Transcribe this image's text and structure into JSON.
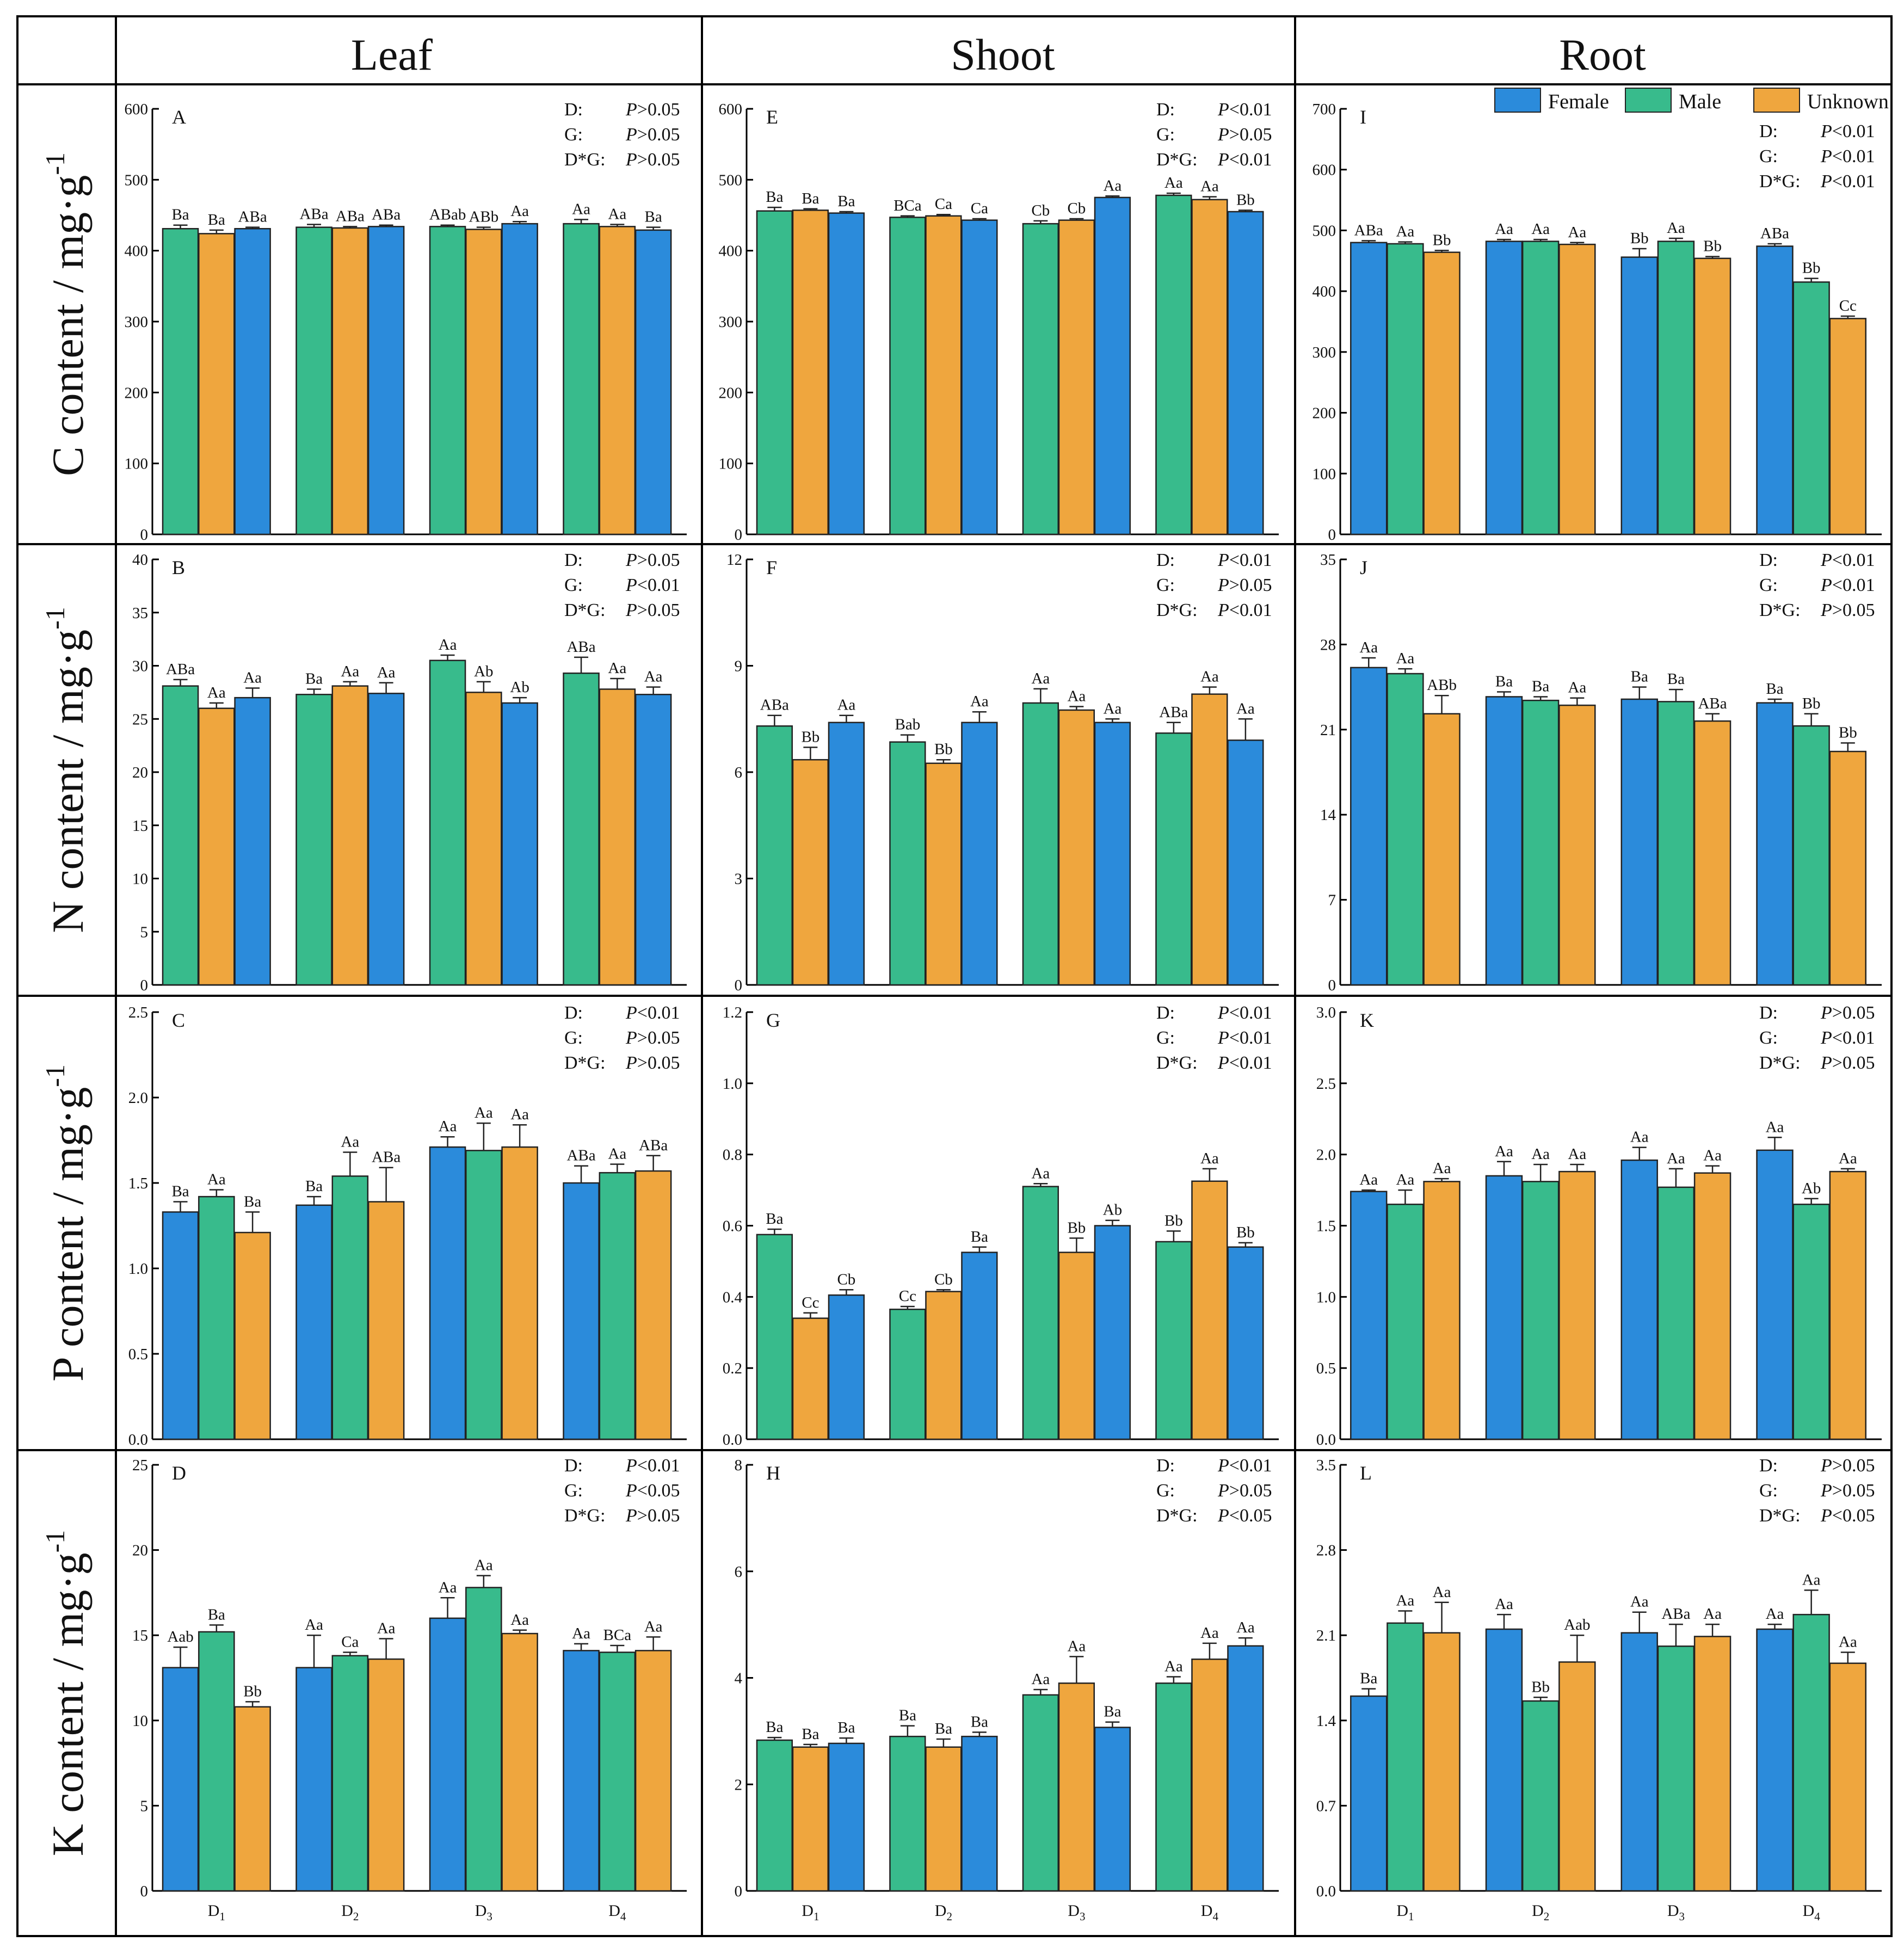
{
  "columns": [
    "Leaf",
    "Shoot",
    "Root"
  ],
  "row_labels": [
    "C content / mg·g",
    "N content / mg·g",
    "P content / mg·g",
    "K content / mg·g"
  ],
  "row_label_superscript": "-1",
  "legend": [
    {
      "name": "Female",
      "color": "#2b8bdb"
    },
    {
      "name": "Male",
      "color": "#38bb8c"
    },
    {
      "name": "Unknown",
      "color": "#efa63e"
    }
  ],
  "categories": [
    "D",
    "D",
    "D",
    "D"
  ],
  "category_subscripts": [
    "1",
    "2",
    "3",
    "4"
  ],
  "chart_data": [
    {
      "id": "A",
      "type": "bar",
      "row": 0,
      "col": 0,
      "ylim": [
        0,
        600
      ],
      "ticks": [
        "0",
        "100",
        "200",
        "300",
        "400",
        "500",
        "600"
      ],
      "series": [
        "Male",
        "Unknown",
        "Female"
      ],
      "values": [
        [
          431,
          424,
          431
        ],
        [
          433,
          432,
          434
        ],
        [
          434,
          430,
          438
        ],
        [
          438,
          434,
          429
        ]
      ],
      "errors": [
        [
          5,
          5,
          2
        ],
        [
          4,
          2,
          2
        ],
        [
          2,
          3,
          3
        ],
        [
          6,
          3,
          4
        ]
      ],
      "labels": [
        [
          "Ba",
          "Ba",
          "ABa"
        ],
        [
          "ABa",
          "ABa",
          "ABa"
        ],
        [
          "ABab",
          "ABb",
          "Aa"
        ],
        [
          "Aa",
          "Aa",
          "Ba"
        ]
      ],
      "stats": [
        [
          "D:",
          "P",
          ">0.05"
        ],
        [
          "G:",
          "P",
          ">0.05"
        ],
        [
          "D*G:",
          "P",
          ">0.05"
        ]
      ]
    },
    {
      "id": "B",
      "type": "bar",
      "row": 1,
      "col": 0,
      "ylim": [
        0,
        40
      ],
      "ticks": [
        "0",
        "5",
        "10",
        "15",
        "20",
        "25",
        "30",
        "35",
        "40"
      ],
      "series": [
        "Male",
        "Unknown",
        "Female"
      ],
      "values": [
        [
          28.1,
          26.0,
          27.0
        ],
        [
          27.3,
          28.1,
          27.4
        ],
        [
          30.5,
          27.5,
          26.5
        ],
        [
          29.3,
          27.8,
          27.3
        ]
      ],
      "errors": [
        [
          0.6,
          0.5,
          0.9
        ],
        [
          0.5,
          0.4,
          1.0
        ],
        [
          0.5,
          1.0,
          0.5
        ],
        [
          1.5,
          1.0,
          0.7
        ]
      ],
      "labels": [
        [
          "ABa",
          "Aa",
          "Aa"
        ],
        [
          "Ba",
          "Aa",
          "Aa"
        ],
        [
          "Aa",
          "Ab",
          "Ab"
        ],
        [
          "ABa",
          "Aa",
          "Aa"
        ]
      ],
      "stats": [
        [
          "D:",
          "P",
          ">0.05"
        ],
        [
          "G:",
          "P",
          "<0.01"
        ],
        [
          "D*G:",
          "P",
          ">0.05"
        ]
      ]
    },
    {
      "id": "C",
      "type": "bar",
      "row": 2,
      "col": 0,
      "ylim": [
        0,
        2.5
      ],
      "ticks": [
        "0.0",
        "0.5",
        "1.0",
        "1.5",
        "2.0",
        "2.5"
      ],
      "series": [
        "Female",
        "Male",
        "Unknown"
      ],
      "values": [
        [
          1.33,
          1.42,
          1.21
        ],
        [
          1.37,
          1.54,
          1.39
        ],
        [
          1.71,
          1.69,
          1.71
        ],
        [
          1.5,
          1.56,
          1.57
        ]
      ],
      "errors": [
        [
          0.06,
          0.04,
          0.12
        ],
        [
          0.05,
          0.14,
          0.2
        ],
        [
          0.06,
          0.16,
          0.13
        ],
        [
          0.1,
          0.05,
          0.09
        ]
      ],
      "labels": [
        [
          "Ba",
          "Aa",
          "Ba"
        ],
        [
          "Ba",
          "Aa",
          "ABa"
        ],
        [
          "Aa",
          "Aa",
          "Aa"
        ],
        [
          "ABa",
          "Aa",
          "ABa"
        ]
      ],
      "stats": [
        [
          "D:",
          "P",
          "<0.01"
        ],
        [
          "G:",
          "P",
          ">0.05"
        ],
        [
          "D*G:",
          "P",
          ">0.05"
        ]
      ]
    },
    {
      "id": "D",
      "type": "bar",
      "row": 3,
      "col": 0,
      "ylim": [
        0,
        25
      ],
      "ticks": [
        "0",
        "5",
        "10",
        "15",
        "20",
        "25"
      ],
      "series": [
        "Female",
        "Male",
        "Unknown"
      ],
      "values": [
        [
          13.1,
          15.2,
          10.8
        ],
        [
          13.1,
          13.8,
          13.6
        ],
        [
          16.0,
          17.8,
          15.1
        ],
        [
          14.1,
          14.0,
          14.1
        ]
      ],
      "errors": [
        [
          1.2,
          0.4,
          0.3
        ],
        [
          1.9,
          0.2,
          1.2
        ],
        [
          1.2,
          0.7,
          0.2
        ],
        [
          0.4,
          0.4,
          0.8
        ]
      ],
      "labels": [
        [
          "Aab",
          "Ba",
          "Bb"
        ],
        [
          "Aa",
          "Ca",
          "Aa"
        ],
        [
          "Aa",
          "Aa",
          "Aa"
        ],
        [
          "Aa",
          "BCa",
          "Aa"
        ]
      ],
      "stats": [
        [
          "D:",
          "P",
          "<0.01"
        ],
        [
          "G:",
          "P",
          "<0.05"
        ],
        [
          "D*G:",
          "P",
          ">0.05"
        ]
      ]
    },
    {
      "id": "E",
      "type": "bar",
      "row": 0,
      "col": 1,
      "ylim": [
        0,
        600
      ],
      "ticks": [
        "0",
        "100",
        "200",
        "300",
        "400",
        "500",
        "600"
      ],
      "series": [
        "Male",
        "Unknown",
        "Female"
      ],
      "values": [
        [
          456,
          457,
          453
        ],
        [
          447,
          449,
          443
        ],
        [
          438,
          443,
          475
        ],
        [
          478,
          472,
          455
        ]
      ],
      "errors": [
        [
          5,
          2,
          2
        ],
        [
          2,
          2,
          2
        ],
        [
          4,
          2,
          2
        ],
        [
          3,
          4,
          2
        ]
      ],
      "labels": [
        [
          "Ba",
          "Ba",
          "Ba"
        ],
        [
          "BCa",
          "Ca",
          "Ca"
        ],
        [
          "Cb",
          "Cb",
          "Aa"
        ],
        [
          "Aa",
          "Aa",
          "Bb"
        ]
      ],
      "stats": [
        [
          "D:",
          "P",
          "<0.01"
        ],
        [
          "G:",
          "P",
          ">0.05"
        ],
        [
          "D*G:",
          "P",
          "<0.01"
        ]
      ]
    },
    {
      "id": "F",
      "type": "bar",
      "row": 1,
      "col": 1,
      "ylim": [
        0,
        12
      ],
      "ticks": [
        "0",
        "3",
        "6",
        "9",
        "12"
      ],
      "series": [
        "Male",
        "Unknown",
        "Female"
      ],
      "values": [
        [
          7.3,
          6.35,
          7.4
        ],
        [
          6.85,
          6.25,
          7.4
        ],
        [
          7.95,
          7.75,
          7.4
        ],
        [
          7.1,
          8.2,
          6.9
        ]
      ],
      "errors": [
        [
          0.3,
          0.35,
          0.2
        ],
        [
          0.2,
          0.1,
          0.3
        ],
        [
          0.4,
          0.1,
          0.1
        ],
        [
          0.3,
          0.2,
          0.6
        ]
      ],
      "labels": [
        [
          "ABa",
          "Bb",
          "Aa"
        ],
        [
          "Bab",
          "Bb",
          "Aa"
        ],
        [
          "Aa",
          "Aa",
          "Aa"
        ],
        [
          "ABa",
          "Aa",
          "Aa"
        ]
      ],
      "stats": [
        [
          "D:",
          "P",
          "<0.01"
        ],
        [
          "G:",
          "P",
          ">0.05"
        ],
        [
          "D*G:",
          "P",
          "<0.01"
        ]
      ]
    },
    {
      "id": "G",
      "type": "bar",
      "row": 2,
      "col": 1,
      "ylim": [
        0,
        1.2
      ],
      "ticks": [
        "0.0",
        "0.2",
        "0.4",
        "0.6",
        "0.8",
        "1.0",
        "1.2"
      ],
      "series": [
        "Male",
        "Unknown",
        "Female"
      ],
      "values": [
        [
          0.575,
          0.34,
          0.405
        ],
        [
          0.365,
          0.415,
          0.525
        ],
        [
          0.71,
          0.525,
          0.6
        ],
        [
          0.555,
          0.725,
          0.54
        ]
      ],
      "errors": [
        [
          0.015,
          0.015,
          0.015
        ],
        [
          0.008,
          0.005,
          0.015
        ],
        [
          0.008,
          0.04,
          0.015
        ],
        [
          0.03,
          0.035,
          0.012
        ]
      ],
      "labels": [
        [
          "Ba",
          "Cc",
          "Cb"
        ],
        [
          "Cc",
          "Cb",
          "Ba"
        ],
        [
          "Aa",
          "Bb",
          "Ab"
        ],
        [
          "Bb",
          "Aa",
          "Bb"
        ]
      ],
      "stats": [
        [
          "D:",
          "P",
          "<0.01"
        ],
        [
          "G:",
          "P",
          "<0.01"
        ],
        [
          "D*G:",
          "P",
          "<0.01"
        ]
      ]
    },
    {
      "id": "H",
      "type": "bar",
      "row": 3,
      "col": 1,
      "ylim": [
        0,
        8
      ],
      "ticks": [
        "0",
        "2",
        "4",
        "6",
        "8"
      ],
      "series": [
        "Male",
        "Unknown",
        "Female"
      ],
      "values": [
        [
          2.83,
          2.7,
          2.77
        ],
        [
          2.9,
          2.7,
          2.9
        ],
        [
          3.68,
          3.9,
          3.07
        ],
        [
          3.9,
          4.35,
          4.6
        ]
      ],
      "errors": [
        [
          0.05,
          0.05,
          0.1
        ],
        [
          0.2,
          0.15,
          0.08
        ],
        [
          0.1,
          0.5,
          0.1
        ],
        [
          0.12,
          0.3,
          0.15
        ]
      ],
      "labels": [
        [
          "Ba",
          "Ba",
          "Ba"
        ],
        [
          "Ba",
          "Ba",
          "Ba"
        ],
        [
          "Aa",
          "Aa",
          "Ba"
        ],
        [
          "Aa",
          "Aa",
          "Aa"
        ]
      ],
      "stats": [
        [
          "D:",
          "P",
          "<0.01"
        ],
        [
          "G:",
          "P",
          ">0.05"
        ],
        [
          "D*G:",
          "P",
          "<0.05"
        ]
      ]
    },
    {
      "id": "I",
      "type": "bar",
      "row": 0,
      "col": 2,
      "ylim": [
        0,
        700
      ],
      "ticks": [
        "0",
        "100",
        "200",
        "300",
        "400",
        "500",
        "600",
        "700"
      ],
      "series": [
        "Female",
        "Male",
        "Unknown"
      ],
      "values": [
        [
          480,
          478,
          464
        ],
        [
          482,
          482,
          477
        ],
        [
          456,
          482,
          454
        ],
        [
          474,
          415,
          355
        ]
      ],
      "errors": [
        [
          3,
          3,
          3
        ],
        [
          3,
          3,
          3
        ],
        [
          14,
          5,
          3
        ],
        [
          4,
          6,
          4
        ]
      ],
      "labels": [
        [
          "ABa",
          "Aa",
          "Bb"
        ],
        [
          "Aa",
          "Aa",
          "Aa"
        ],
        [
          "Bb",
          "Aa",
          "Bb"
        ],
        [
          "ABa",
          "Bb",
          "Cc"
        ]
      ],
      "stats": [
        [
          "D:",
          "P",
          "<0.01"
        ],
        [
          "G:",
          "P",
          "<0.01"
        ],
        [
          "D*G:",
          "P",
          "<0.01"
        ]
      ]
    },
    {
      "id": "J",
      "type": "bar",
      "row": 1,
      "col": 2,
      "ylim": [
        0,
        35
      ],
      "ticks": [
        "0",
        "7",
        "14",
        "21",
        "28",
        "35"
      ],
      "series": [
        "Female",
        "Male",
        "Unknown"
      ],
      "values": [
        [
          26.1,
          25.6,
          22.3
        ],
        [
          23.7,
          23.4,
          23.0
        ],
        [
          23.5,
          23.3,
          21.7
        ],
        [
          23.2,
          21.3,
          19.2
        ]
      ],
      "errors": [
        [
          0.8,
          0.4,
          1.5
        ],
        [
          0.4,
          0.3,
          0.6
        ],
        [
          1.0,
          1.0,
          0.6
        ],
        [
          0.3,
          1.0,
          0.7
        ]
      ],
      "labels": [
        [
          "Aa",
          "Aa",
          "ABb"
        ],
        [
          "Ba",
          "Ba",
          "Aa"
        ],
        [
          "Ba",
          "Ba",
          "ABa"
        ],
        [
          "Ba",
          "Bb",
          "Bb"
        ]
      ],
      "stats": [
        [
          "D:",
          "P",
          "<0.01"
        ],
        [
          "G:",
          "P",
          "<0.01"
        ],
        [
          "D*G:",
          "P",
          ">0.05"
        ]
      ]
    },
    {
      "id": "K",
      "type": "bar",
      "row": 2,
      "col": 2,
      "ylim": [
        0,
        3.0
      ],
      "ticks": [
        "0.0",
        "0.5",
        "1.0",
        "1.5",
        "2.0",
        "2.5",
        "3.0"
      ],
      "series": [
        "Female",
        "Male",
        "Unknown"
      ],
      "values": [
        [
          1.74,
          1.65,
          1.81
        ],
        [
          1.85,
          1.81,
          1.88
        ],
        [
          1.96,
          1.77,
          1.87
        ],
        [
          2.03,
          1.65,
          1.88
        ]
      ],
      "errors": [
        [
          0.01,
          0.1,
          0.02
        ],
        [
          0.1,
          0.12,
          0.05
        ],
        [
          0.09,
          0.13,
          0.05
        ],
        [
          0.09,
          0.04,
          0.02
        ]
      ],
      "labels": [
        [
          "Aa",
          "Aa",
          "Aa"
        ],
        [
          "Aa",
          "Aa",
          "Aa"
        ],
        [
          "Aa",
          "Aa",
          "Aa"
        ],
        [
          "Aa",
          "Ab",
          "Aa"
        ]
      ],
      "stats": [
        [
          "D:",
          "P",
          ">0.05"
        ],
        [
          "G:",
          "P",
          "<0.01"
        ],
        [
          "D*G:",
          "P",
          ">0.05"
        ]
      ]
    },
    {
      "id": "L",
      "type": "bar",
      "row": 3,
      "col": 2,
      "ylim": [
        0,
        3.5
      ],
      "ticks": [
        "0.0",
        "0.7",
        "1.4",
        "2.1",
        "2.8",
        "3.5"
      ],
      "series": [
        "Female",
        "Male",
        "Unknown"
      ],
      "values": [
        [
          1.6,
          2.2,
          2.12
        ],
        [
          2.15,
          1.56,
          1.88
        ],
        [
          2.12,
          2.01,
          2.09
        ],
        [
          2.15,
          2.27,
          1.87
        ]
      ],
      "errors": [
        [
          0.06,
          0.1,
          0.25
        ],
        [
          0.12,
          0.03,
          0.22
        ],
        [
          0.17,
          0.18,
          0.1
        ],
        [
          0.04,
          0.2,
          0.09
        ]
      ],
      "labels": [
        [
          "Ba",
          "Aa",
          "Aa"
        ],
        [
          "Aa",
          "Bb",
          "Aab"
        ],
        [
          "Aa",
          "ABa",
          "Aa"
        ],
        [
          "Aa",
          "Aa",
          "Aa"
        ]
      ],
      "stats": [
        [
          "D:",
          "P",
          ">0.05"
        ],
        [
          "G:",
          "P",
          ">0.05"
        ],
        [
          "D*G:",
          "P",
          "<0.05"
        ]
      ]
    }
  ]
}
